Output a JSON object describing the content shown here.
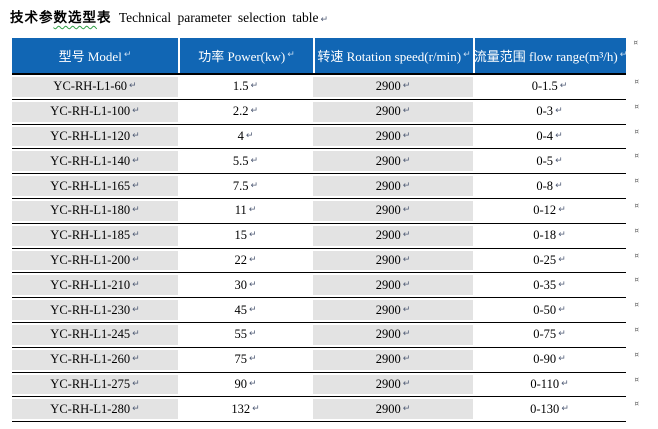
{
  "title": {
    "zh_before": "技术参",
    "zh_wavy": "数选型",
    "zh_after": "表",
    "en": "Technical parameter selection table"
  },
  "marks": {
    "paragraph": "↵",
    "row_end": "¤"
  },
  "colors": {
    "header_bg": "#1166b4",
    "header_text": "#ffffff",
    "row_shade": "#e3e3e3",
    "border": "#000000",
    "spellcheck_wavy": "#2f9e44",
    "paragraph_mark": "#4f5b75",
    "header_paragraph_mark": "#c9ddf1",
    "row_end_mark": "#666666"
  },
  "table": {
    "columns": [
      {
        "label": "型号 Model"
      },
      {
        "label": "功率 Power(kw)"
      },
      {
        "label": "转速 Rotation speed(r/min)"
      },
      {
        "label": "流量范围 flow range(m³/h)"
      }
    ],
    "rows": [
      {
        "model": "YC-RH-L1-60",
        "power": "1.5",
        "speed": "2900",
        "flow": "0-1.5"
      },
      {
        "model": "YC-RH-L1-100",
        "power": "2.2",
        "speed": "2900",
        "flow": "0-3"
      },
      {
        "model": "YC-RH-L1-120",
        "power": "4",
        "speed": "2900",
        "flow": "0-4"
      },
      {
        "model": "YC-RH-L1-140",
        "power": "5.5",
        "speed": "2900",
        "flow": "0-5"
      },
      {
        "model": "YC-RH-L1-165",
        "power": "7.5",
        "speed": "2900",
        "flow": "0-8"
      },
      {
        "model": "YC-RH-L1-180",
        "power": "11",
        "speed": "2900",
        "flow": "0-12"
      },
      {
        "model": "YC-RH-L1-185",
        "power": "15",
        "speed": "2900",
        "flow": "0-18"
      },
      {
        "model": "YC-RH-L1-200",
        "power": "22",
        "speed": "2900",
        "flow": "0-25"
      },
      {
        "model": "YC-RH-L1-210",
        "power": "30",
        "speed": "2900",
        "flow": "0-35"
      },
      {
        "model": "YC-RH-L1-230",
        "power": "45",
        "speed": "2900",
        "flow": "0-50"
      },
      {
        "model": "YC-RH-L1-245",
        "power": "55",
        "speed": "2900",
        "flow": "0-75"
      },
      {
        "model": "YC-RH-L1-260",
        "power": "75",
        "speed": "2900",
        "flow": "0-90"
      },
      {
        "model": "YC-RH-L1-275",
        "power": "90",
        "speed": "2900",
        "flow": "0-110"
      },
      {
        "model": "YC-RH-L1-280",
        "power": "132",
        "speed": "2900",
        "flow": "0-130"
      }
    ]
  }
}
